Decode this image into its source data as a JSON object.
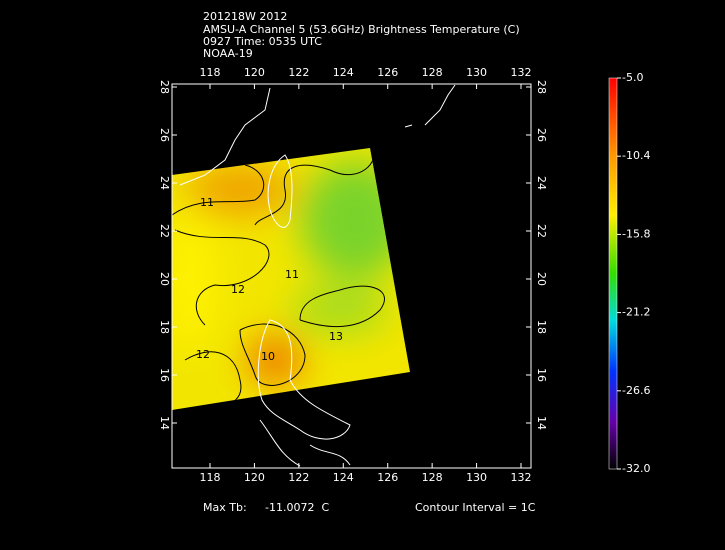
{
  "header": {
    "lines": [
      "201218W 2012",
      "AMSU-A Channel 5 (53.6GHz) Brightness Temperature (C)",
      "0927 Time: 0535 UTC",
      "NOAA-19"
    ]
  },
  "map": {
    "lon_range": [
      116.29,
      132.45
    ],
    "lat_range": [
      12.125,
      28.125
    ],
    "lon_ticks": [
      118,
      120,
      122,
      124,
      126,
      128,
      130,
      132
    ],
    "lat_ticks": [
      14,
      16,
      18,
      20,
      22,
      24,
      26,
      28
    ],
    "contour_labels": [
      "11",
      "11",
      "12",
      "12",
      "13",
      "10"
    ]
  },
  "colorbar": {
    "range": [
      -32,
      -5
    ],
    "ticks": [
      {
        "value": -5,
        "label": "-5.0"
      },
      {
        "value": -10.4,
        "label": "-10.4"
      },
      {
        "value": -15.8,
        "label": "-15.8"
      },
      {
        "value": -21.2,
        "label": "-21.2"
      },
      {
        "value": -26.6,
        "label": "-26.6"
      },
      {
        "value": -32,
        "label": "-32.0"
      }
    ]
  },
  "footer": {
    "max_tb_label": "Max Tb:",
    "max_tb_value": "-11.0072  C",
    "contour_interval": "Contour Interval = 1C"
  }
}
